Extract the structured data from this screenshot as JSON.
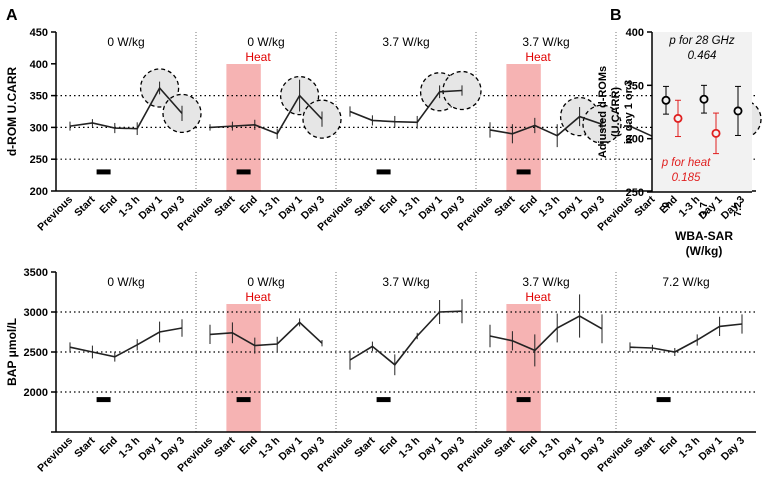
{
  "figure": {
    "panel_a_label": "A",
    "panel_b_label": "B"
  },
  "colors": {
    "line": "#222222",
    "heat_band": "#f4a6a6",
    "heat_text": "#e00000",
    "circle_fill": "#e6e6e6",
    "panel_b_bg": "#f2f2f2",
    "red_marker": "#e02020"
  },
  "chart_data": [
    {
      "id": "drom",
      "type": "line",
      "ylabel": "d-ROM U.CARR",
      "ylim": [
        200,
        450
      ],
      "yticks": [
        200,
        250,
        300,
        350,
        400,
        450
      ],
      "dotted_gridlines": [
        250,
        300,
        350
      ],
      "x_categories": [
        "Previous",
        "Start",
        "End",
        "1-3 h",
        "Day 1",
        "Day 3"
      ],
      "bar_marker_value": 230,
      "groups": [
        {
          "label": "0 W/kg",
          "heat": false,
          "values": [
            302,
            307,
            299,
            298,
            362,
            322
          ],
          "errors": [
            7,
            6,
            8,
            10,
            10,
            12
          ],
          "circled": [
            4,
            5
          ]
        },
        {
          "label": "0 W/kg",
          "heat": true,
          "heat_label": "Heat",
          "values": [
            300,
            302,
            304,
            290,
            350,
            313
          ],
          "errors": [
            5,
            7,
            8,
            8,
            25,
            12
          ],
          "circled": [
            4,
            5
          ]
        },
        {
          "label": "3.7 W/kg",
          "heat": false,
          "values": [
            325,
            311,
            309,
            308,
            356,
            358
          ],
          "errors": [
            8,
            8,
            9,
            10,
            10,
            8
          ],
          "circled": [
            4,
            5
          ]
        },
        {
          "label": "3.7 W/kg",
          "heat": true,
          "heat_label": "Heat",
          "values": [
            296,
            290,
            303,
            287,
            317,
            305
          ],
          "errors": [
            12,
            15,
            12,
            18,
            15,
            10
          ],
          "circled": [
            4,
            5
          ]
        },
        {
          "label": "7.2 W/kg",
          "heat": false,
          "values": [
            302,
            286,
            275,
            288,
            318,
            313
          ],
          "errors": [
            5,
            4,
            6,
            5,
            8,
            6
          ],
          "circled": [
            4,
            5
          ]
        }
      ]
    },
    {
      "id": "bap",
      "type": "line",
      "ylabel": "BAP μmol/L",
      "ylim": [
        1500,
        3500
      ],
      "yticks": [
        1500,
        2000,
        2500,
        3000,
        3500
      ],
      "tick_labels": [
        "",
        "2000",
        "2500",
        "3000",
        "3500"
      ],
      "dotted_gridlines": [
        2000,
        2500,
        3000
      ],
      "x_categories": [
        "Previous",
        "Start",
        "End",
        "1-3 h",
        "Day 1",
        "Day 3"
      ],
      "bar_marker_value": 1905,
      "groups": [
        {
          "label": "0 W/kg",
          "heat": false,
          "values": [
            2560,
            2500,
            2440,
            2590,
            2750,
            2800
          ],
          "errors": [
            60,
            80,
            60,
            70,
            130,
            110
          ],
          "circled": []
        },
        {
          "label": "0 W/kg",
          "heat": true,
          "heat_label": "Heat",
          "values": [
            2720,
            2740,
            2580,
            2600,
            2870,
            2610
          ],
          "errors": [
            120,
            130,
            100,
            90,
            50,
            40
          ],
          "circled": []
        },
        {
          "label": "3.7 W/kg",
          "heat": false,
          "values": [
            2400,
            2570,
            2340,
            2700,
            3000,
            3010
          ],
          "errors": [
            120,
            60,
            130,
            40,
            150,
            150
          ],
          "circled": []
        },
        {
          "label": "3.7 W/kg",
          "heat": true,
          "heat_label": "Heat",
          "values": [
            2700,
            2640,
            2520,
            2800,
            2950,
            2790
          ],
          "errors": [
            140,
            120,
            200,
            180,
            270,
            180
          ],
          "circled": []
        },
        {
          "label": "7.2 W/kg",
          "heat": false,
          "values": [
            2560,
            2550,
            2500,
            2650,
            2820,
            2850
          ],
          "errors": [
            60,
            40,
            50,
            70,
            120,
            120
          ],
          "circled": []
        }
      ]
    },
    {
      "id": "adjusted",
      "type": "scatter",
      "ylabel_lines": [
        "Adjusted d-ROMs",
        "(U.CARR)",
        "in day 1 or 3"
      ],
      "xlabel_lines": [
        "WBA-SAR",
        "(W/kg)"
      ],
      "ylim": [
        250,
        400
      ],
      "yticks": [
        250,
        300,
        350,
        400
      ],
      "x_categories": [
        "0",
        "3.7",
        "7.2"
      ],
      "series": [
        {
          "name": "28 GHz",
          "color": "black",
          "values": [
            336,
            337,
            326
          ],
          "errors": [
            13,
            13,
            23
          ]
        },
        {
          "name": "heat",
          "color": "red",
          "values": [
            319,
            305,
            null
          ],
          "errors": [
            17,
            19,
            null
          ]
        }
      ],
      "annotations": {
        "p_28_line1": "p for 28 GHz",
        "p_28_line2": "0.464",
        "p_heat_line1": "p for heat",
        "p_heat_line2": "0.185"
      }
    }
  ]
}
